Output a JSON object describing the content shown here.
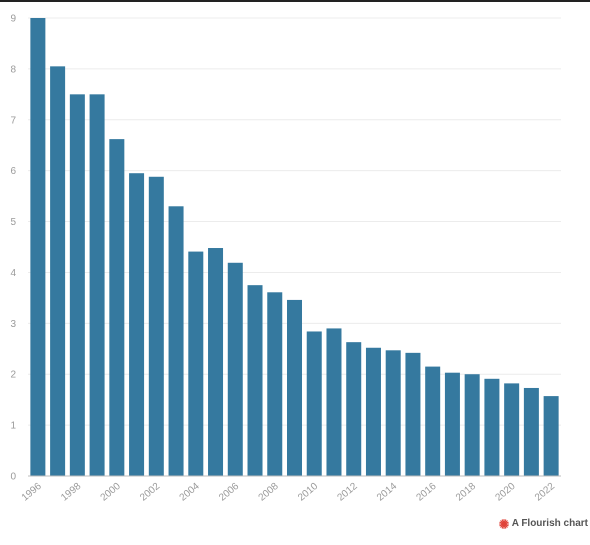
{
  "chart_data": {
    "type": "bar",
    "title": "",
    "xlabel": "",
    "ylabel": "",
    "categories": [
      "1996",
      "1997",
      "1998",
      "1999",
      "2000",
      "2001",
      "2002",
      "2003",
      "2004",
      "2005",
      "2006",
      "2007",
      "2008",
      "2009",
      "2010",
      "2011",
      "2012",
      "2013",
      "2014",
      "2015",
      "2016",
      "2017",
      "2018",
      "2019",
      "2020",
      "2021",
      "2022"
    ],
    "x_tick_labels": [
      "1996",
      "1998",
      "2000",
      "2002",
      "2004",
      "2006",
      "2008",
      "2010",
      "2012",
      "2014",
      "2016",
      "2018",
      "2020",
      "2022"
    ],
    "values": [
      9.0,
      8.05,
      7.5,
      7.5,
      6.62,
      5.95,
      5.88,
      5.3,
      4.41,
      4.48,
      4.19,
      3.75,
      3.61,
      3.46,
      2.84,
      2.9,
      2.63,
      2.52,
      2.47,
      2.42,
      2.15,
      2.03,
      2.0,
      1.91,
      1.82,
      1.73,
      1.57
    ],
    "y_ticks": [
      "0",
      "1",
      "2",
      "3",
      "4",
      "5",
      "6",
      "7",
      "8",
      "9"
    ],
    "ylim": [
      0,
      9
    ],
    "grid": true,
    "legend": "none",
    "bar_color": "#35799f",
    "grid_color": "#ececec",
    "axis_color": "#bdbdbd"
  },
  "footer": {
    "credit_label": "A Flourish chart",
    "credit_icon": "flourish-logo-icon",
    "credit_icon_color": "#e0433a"
  }
}
